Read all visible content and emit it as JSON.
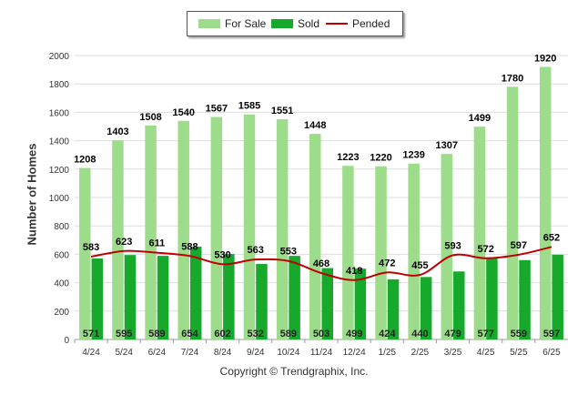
{
  "chart_data": {
    "type": "bar",
    "categories": [
      "4/24",
      "5/24",
      "6/24",
      "7/24",
      "8/24",
      "9/24",
      "10/24",
      "11/24",
      "12/24",
      "1/25",
      "2/25",
      "3/25",
      "4/25",
      "5/25",
      "6/25"
    ],
    "series": [
      {
        "name": "For Sale",
        "type": "bar",
        "color": "#9ddc8a",
        "values": [
          1208,
          1403,
          1508,
          1540,
          1567,
          1585,
          1551,
          1448,
          1223,
          1220,
          1239,
          1307,
          1499,
          1780,
          1920
        ]
      },
      {
        "name": "Sold",
        "type": "bar",
        "color": "#16a92c",
        "values": [
          571,
          595,
          589,
          654,
          602,
          532,
          589,
          503,
          499,
          424,
          440,
          479,
          577,
          559,
          597
        ]
      },
      {
        "name": "Pended",
        "type": "line",
        "color": "#c00000",
        "values": [
          583,
          623,
          611,
          588,
          530,
          563,
          553,
          468,
          418,
          472,
          455,
          593,
          572,
          597,
          652
        ]
      }
    ],
    "xlabel": "",
    "ylabel": "Number of Homes",
    "ylim": [
      0,
      2000
    ],
    "yticks": [
      0,
      200,
      400,
      600,
      800,
      1000,
      1200,
      1400,
      1600,
      1800,
      2000
    ],
    "grid": true,
    "legend_position": "top-center"
  },
  "legend": {
    "for_sale": "For Sale",
    "sold": "Sold",
    "pended": "Pended"
  },
  "footer": {
    "copyright": "Copyright © Trendgraphix, Inc."
  }
}
